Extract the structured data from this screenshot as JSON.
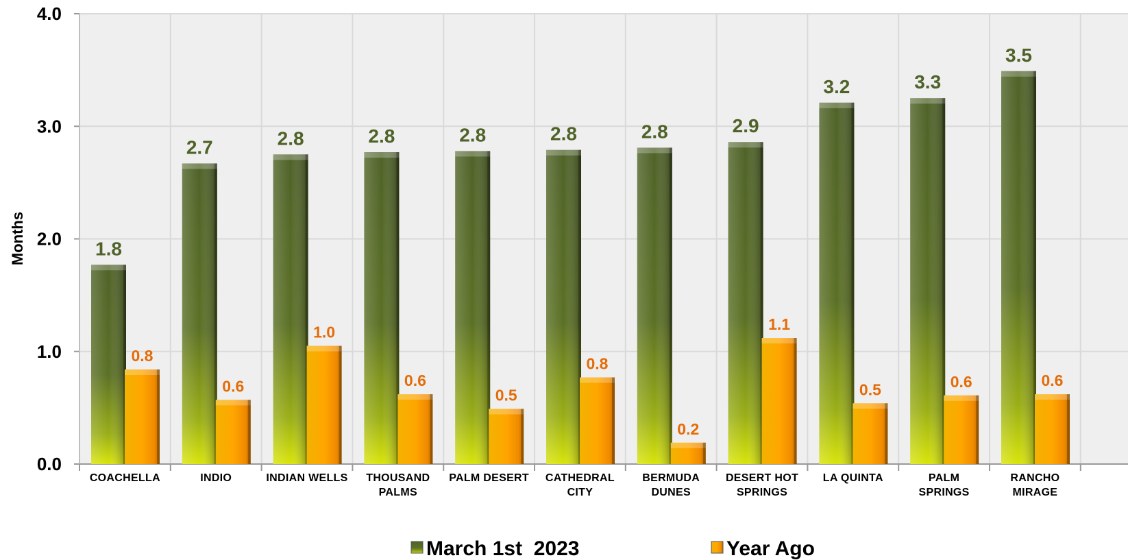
{
  "chart_data": {
    "type": "bar",
    "title": "",
    "xlabel": "",
    "ylabel": "Months",
    "ylim": [
      0,
      4
    ],
    "yticks": [
      "0.0",
      "1.0",
      "2.0",
      "3.0",
      "4.0"
    ],
    "grid": true,
    "legend_position": "bottom",
    "categories": [
      [
        "COACHELLA"
      ],
      [
        "INDIO"
      ],
      [
        "INDIAN WELLS"
      ],
      [
        "THOUSAND",
        "PALMS"
      ],
      [
        "PALM DESERT"
      ],
      [
        "CATHEDRAL",
        "CITY"
      ],
      [
        "BERMUDA",
        "DUNES"
      ],
      [
        "DESERT HOT",
        "SPRINGS"
      ],
      [
        "LA QUINTA"
      ],
      [
        "PALM",
        "SPRINGS"
      ],
      [
        "RANCHO",
        "MIRAGE"
      ]
    ],
    "series": [
      {
        "name": "March 1st  2023",
        "color": "#5a6e2a",
        "label_color": "#4f6228",
        "values": [
          1.77,
          2.67,
          2.75,
          2.77,
          2.78,
          2.79,
          2.81,
          2.86,
          3.21,
          3.25,
          3.49
        ],
        "labels": [
          "1.8",
          "2.7",
          "2.8",
          "2.8",
          "2.8",
          "2.8",
          "2.8",
          "2.9",
          "3.2",
          "3.3",
          "3.5"
        ]
      },
      {
        "name": "Year Ago",
        "color": "#ffa000",
        "label_color": "#e36c09",
        "values": [
          0.84,
          0.57,
          1.05,
          0.62,
          0.49,
          0.77,
          0.19,
          1.12,
          0.54,
          0.61,
          0.62
        ],
        "labels": [
          "0.8",
          "0.6",
          "1.0",
          "0.6",
          "0.5",
          "0.8",
          "0.2",
          "1.1",
          "0.5",
          "0.6",
          "0.6"
        ]
      }
    ]
  }
}
